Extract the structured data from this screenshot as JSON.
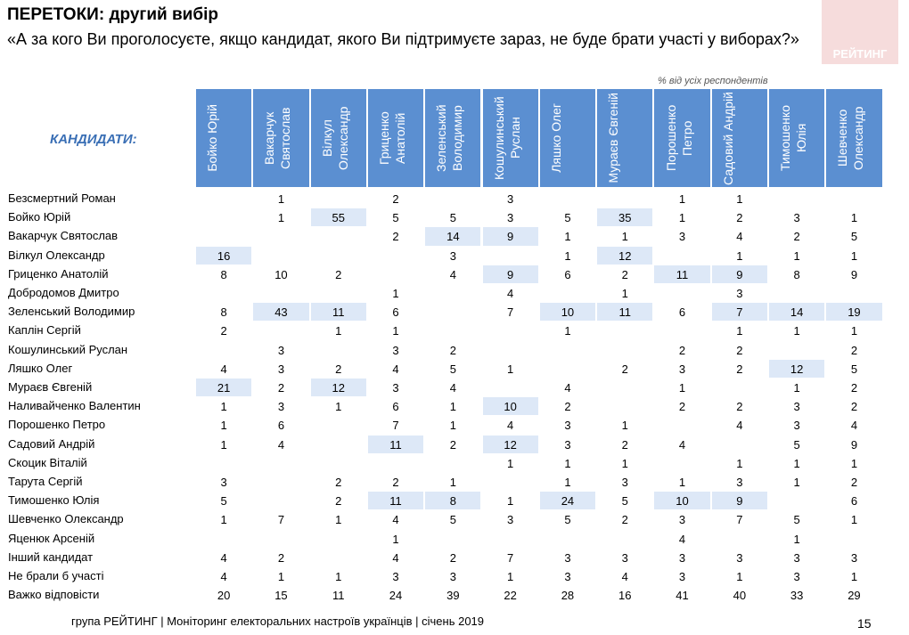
{
  "header": {
    "title": "ПЕРЕТОКИ: другий вибір",
    "question": "«А за кого Ви проголосуєте, якщо кандидат, якого Ви підтримуєте зараз, не буде брати участі у виборах?»",
    "logo": "РЕЙТИНГ",
    "note": "% від усіх респондентів"
  },
  "table": {
    "corner": "КАНДИДАТИ:",
    "columns": [
      "Бойко Юрій",
      "Вакарчук Святослав",
      "Вілкул Олександр",
      "Гриценко Анатолій",
      "Зеленський Володимир",
      "Кошулинський Руслан",
      "Ляшко Олег",
      "Мураєв Євгеній",
      "Порошенко Петро",
      "Садовий Андрій",
      "Тимошенко Юлія",
      "Шевченко Олександр"
    ],
    "rows": [
      {
        "name": "Безсмертний Роман",
        "values": [
          null,
          1,
          null,
          2,
          null,
          3,
          null,
          null,
          1,
          1,
          null,
          null
        ],
        "highlight": []
      },
      {
        "name": "Бойко Юрій",
        "values": [
          null,
          1,
          55,
          5,
          5,
          3,
          5,
          35,
          1,
          2,
          3,
          1
        ],
        "highlight": [
          2,
          7
        ]
      },
      {
        "name": "Вакарчук Святослав",
        "values": [
          null,
          null,
          null,
          2,
          14,
          9,
          1,
          1,
          3,
          4,
          2,
          5
        ],
        "highlight": [
          4,
          5
        ]
      },
      {
        "name": "Вілкул Олександр",
        "values": [
          16,
          null,
          null,
          null,
          3,
          null,
          1,
          12,
          null,
          1,
          1,
          1
        ],
        "highlight": [
          0,
          7
        ]
      },
      {
        "name": "Гриценко Анатолій",
        "values": [
          8,
          10,
          2,
          null,
          4,
          9,
          6,
          2,
          11,
          9,
          8,
          9
        ],
        "highlight": [
          5,
          8,
          9
        ]
      },
      {
        "name": "Добродомов Дмитро",
        "values": [
          null,
          null,
          null,
          1,
          null,
          4,
          null,
          1,
          null,
          3,
          null,
          null
        ],
        "highlight": []
      },
      {
        "name": "Зеленський Володимир",
        "values": [
          8,
          43,
          11,
          6,
          null,
          7,
          10,
          11,
          6,
          7,
          14,
          19
        ],
        "highlight": [
          1,
          2,
          6,
          7,
          9,
          10,
          11
        ]
      },
      {
        "name": "Каплін Сергій",
        "values": [
          2,
          null,
          1,
          1,
          null,
          null,
          1,
          null,
          null,
          1,
          1,
          1
        ],
        "highlight": []
      },
      {
        "name": "Кошулинський Руслан",
        "values": [
          null,
          3,
          null,
          3,
          2,
          null,
          null,
          null,
          2,
          2,
          null,
          2
        ],
        "highlight": []
      },
      {
        "name": "Ляшко Олег",
        "values": [
          4,
          3,
          2,
          4,
          5,
          1,
          null,
          2,
          3,
          2,
          12,
          5
        ],
        "highlight": [
          10
        ]
      },
      {
        "name": "Мураєв Євгеній",
        "values": [
          21,
          2,
          12,
          3,
          4,
          null,
          4,
          null,
          1,
          null,
          1,
          2
        ],
        "highlight": [
          0,
          2
        ]
      },
      {
        "name": "Наливайченко Валентин",
        "values": [
          1,
          3,
          1,
          6,
          1,
          10,
          2,
          null,
          2,
          2,
          3,
          2
        ],
        "highlight": [
          5
        ]
      },
      {
        "name": "Порошенко Петро",
        "values": [
          1,
          6,
          null,
          7,
          1,
          4,
          3,
          1,
          null,
          4,
          3,
          4
        ],
        "highlight": []
      },
      {
        "name": "Садовий Андрій",
        "values": [
          1,
          4,
          null,
          11,
          2,
          12,
          3,
          2,
          4,
          null,
          5,
          9
        ],
        "highlight": [
          3,
          5
        ]
      },
      {
        "name": "Скоцик Віталій",
        "values": [
          null,
          null,
          null,
          null,
          null,
          1,
          1,
          1,
          null,
          1,
          1,
          1
        ],
        "highlight": []
      },
      {
        "name": "Тарута Сергій",
        "values": [
          3,
          null,
          2,
          2,
          1,
          null,
          1,
          3,
          1,
          3,
          1,
          2
        ],
        "highlight": []
      },
      {
        "name": "Тимошенко Юлія",
        "values": [
          5,
          null,
          2,
          11,
          8,
          1,
          24,
          5,
          10,
          9,
          null,
          6
        ],
        "highlight": [
          3,
          4,
          6,
          8,
          9
        ]
      },
      {
        "name": "Шевченко Олександр",
        "values": [
          1,
          7,
          1,
          4,
          5,
          3,
          5,
          2,
          3,
          7,
          5,
          1
        ],
        "highlight": []
      },
      {
        "name": "Яценюк Арсеній",
        "values": [
          null,
          null,
          null,
          1,
          null,
          null,
          null,
          null,
          4,
          null,
          1,
          null
        ],
        "highlight": []
      },
      {
        "name": "Інший кандидат",
        "values": [
          4,
          2,
          null,
          4,
          2,
          7,
          3,
          3,
          3,
          3,
          3,
          3
        ],
        "highlight": []
      },
      {
        "name": "Не брали б участі",
        "values": [
          4,
          1,
          1,
          3,
          3,
          1,
          3,
          4,
          3,
          1,
          3,
          1
        ],
        "highlight": []
      },
      {
        "name": "Важко відповісти",
        "values": [
          20,
          15,
          11,
          24,
          39,
          22,
          28,
          16,
          41,
          40,
          33,
          29
        ],
        "highlight": []
      }
    ]
  },
  "footer": {
    "source": "група РЕЙТИНГ  |  Моніторинг електоральних настроїв українців  |  січень  2019",
    "page": "15"
  }
}
